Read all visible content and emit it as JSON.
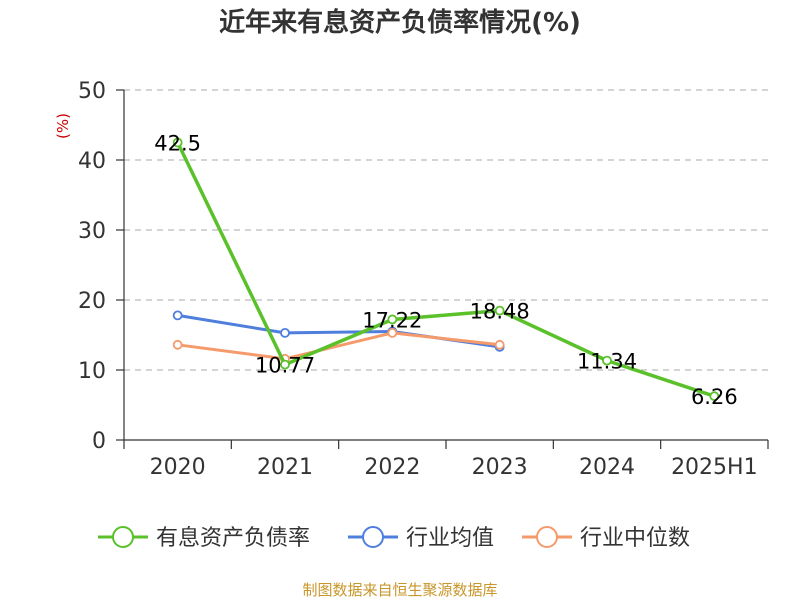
{
  "chart_data": {
    "type": "line",
    "title": "近年来有息资产负债率情况(%)",
    "ylabel": "(%)",
    "xlabel": "",
    "ylim": [
      0,
      50
    ],
    "yticks": [
      "0",
      "10",
      "20",
      "30",
      "40",
      "50"
    ],
    "categories": [
      "2020",
      "2021",
      "2022",
      "2023",
      "2024",
      "2025H1"
    ],
    "grid": true,
    "legend_position": "bottom",
    "series": [
      {
        "name": "有息资产负债率",
        "color": "#5ac12a",
        "values": [
          42.5,
          10.77,
          17.22,
          18.48,
          11.34,
          6.26
        ],
        "labels": [
          "42.5",
          "10.77",
          "17.22",
          "18.48",
          "11.34",
          "6.26"
        ]
      },
      {
        "name": "行业均值",
        "color": "#4f7fdd",
        "values": [
          17.8,
          15.3,
          15.5,
          13.3,
          null,
          null
        ]
      },
      {
        "name": "行业中位数",
        "color": "#f59a6a",
        "values": [
          13.6,
          11.6,
          15.3,
          13.6,
          null,
          null
        ]
      }
    ]
  },
  "source": "制图数据来自恒生聚源数据库"
}
